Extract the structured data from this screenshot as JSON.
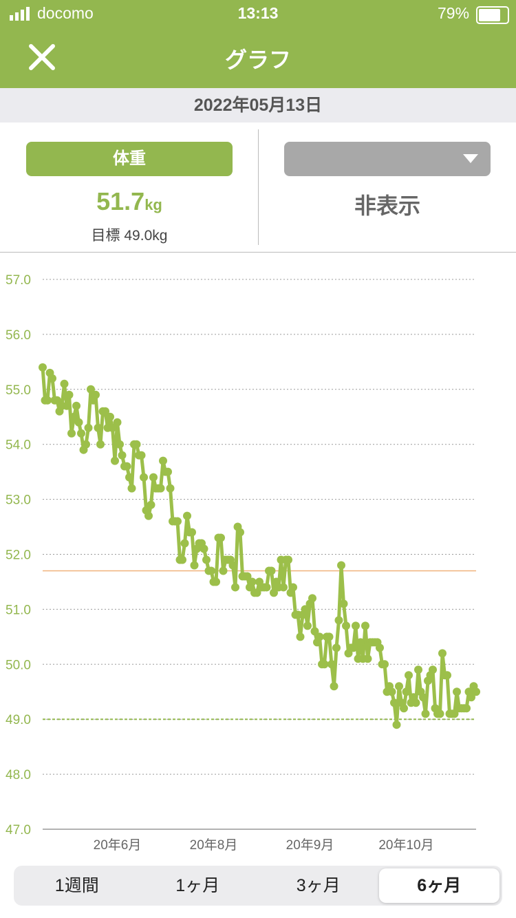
{
  "status_bar": {
    "carrier": "docomo",
    "time": "13:13",
    "battery": "79%"
  },
  "header": {
    "title": "グラフ"
  },
  "date": "2022年05月13日",
  "left_panel": {
    "button": "体重",
    "value": "51.7",
    "unit": "kg",
    "goal": "目標 49.0kg"
  },
  "right_panel": {
    "value": "非表示"
  },
  "chart_data": {
    "type": "line",
    "color": "#9cbf4a",
    "grid": true,
    "values": [
      55.4,
      54.8,
      54.8,
      55.3,
      55.2,
      54.8,
      54.8,
      54.6,
      54.7,
      55.1,
      54.7,
      54.9,
      54.2,
      54.5,
      54.7,
      54.4,
      54.2,
      53.9,
      54.0,
      54.3,
      55.0,
      54.8,
      54.9,
      54.3,
      54.0,
      54.6,
      54.6,
      54.3,
      54.5,
      54.3,
      53.7,
      54.4,
      54.0,
      53.8,
      53.6,
      53.6,
      53.4,
      53.2,
      54.0,
      54.0,
      53.8,
      53.8,
      53.4,
      52.8,
      52.7,
      52.9,
      53.4,
      53.2,
      53.2,
      53.2,
      53.7,
      53.5,
      53.5,
      53.2,
      52.6,
      52.6,
      52.6,
      51.9,
      51.9,
      52.2,
      52.7,
      52.4,
      52.4,
      51.8,
      52.1,
      52.2,
      52.2,
      52.1,
      51.9,
      51.7,
      51.7,
      51.5,
      51.5,
      52.3,
      52.3,
      51.7,
      51.9,
      51.9,
      51.9,
      51.8,
      51.4,
      52.5,
      52.4,
      51.6,
      51.6,
      51.6,
      51.4,
      51.5,
      51.3,
      51.3,
      51.5,
      51.4,
      51.4,
      51.4,
      51.7,
      51.7,
      51.3,
      51.5,
      51.4,
      51.9,
      51.4,
      51.9,
      51.9,
      51.3,
      51.4,
      50.9,
      50.9,
      50.5,
      50.9,
      51.0,
      50.7,
      51.1,
      51.2,
      50.6,
      50.4,
      50.5,
      50.0,
      50.0,
      50.5,
      50.5,
      50.0,
      49.6,
      50.3,
      50.8,
      51.8,
      51.1,
      50.7,
      50.2,
      50.3,
      50.3,
      50.7,
      50.1,
      50.4,
      50.1,
      50.7,
      50.1,
      50.4,
      50.4,
      50.4,
      50.4,
      50.3,
      50.0,
      50.0,
      49.5,
      49.6,
      49.5,
      49.3,
      48.9,
      49.6,
      49.3,
      49.2,
      49.5,
      49.8,
      49.3,
      49.4,
      49.3,
      49.9,
      49.5,
      49.4,
      49.1,
      49.7,
      49.8,
      49.9,
      49.2,
      49.1,
      49.1,
      50.2,
      49.8,
      49.8,
      49.1,
      49.1,
      49.1,
      49.5,
      49.2,
      49.2,
      49.2,
      49.2,
      49.5,
      49.4,
      49.6,
      49.5
    ],
    "current": 51.7,
    "target": 49,
    "xlim": [
      0,
      180
    ],
    "xticks": [
      {
        "value": 31,
        "label": "20年6月"
      },
      {
        "value": 71,
        "label": "20年8月"
      },
      {
        "value": 111,
        "label": "20年9月"
      },
      {
        "value": 151,
        "label": "20年10月"
      }
    ],
    "ylim": [
      47,
      57
    ],
    "yticks": [
      {
        "value": 57,
        "label": "57.0"
      },
      {
        "value": 56,
        "label": "56.0"
      },
      {
        "value": 55,
        "label": "55.0"
      },
      {
        "value": 54,
        "label": "54.0"
      },
      {
        "value": 53,
        "label": "53.0"
      },
      {
        "value": 52,
        "label": "52.0"
      },
      {
        "value": 51,
        "label": "51.0"
      },
      {
        "value": 50,
        "label": "50.0"
      },
      {
        "value": 49,
        "label": "49.0"
      },
      {
        "value": 48,
        "label": "48.0"
      },
      {
        "value": 47,
        "label": "47.0"
      }
    ]
  },
  "tabs": [
    "1週間",
    "1ヶ月",
    "3ヶ月",
    "6ヶ月"
  ],
  "selected_tab": 3
}
